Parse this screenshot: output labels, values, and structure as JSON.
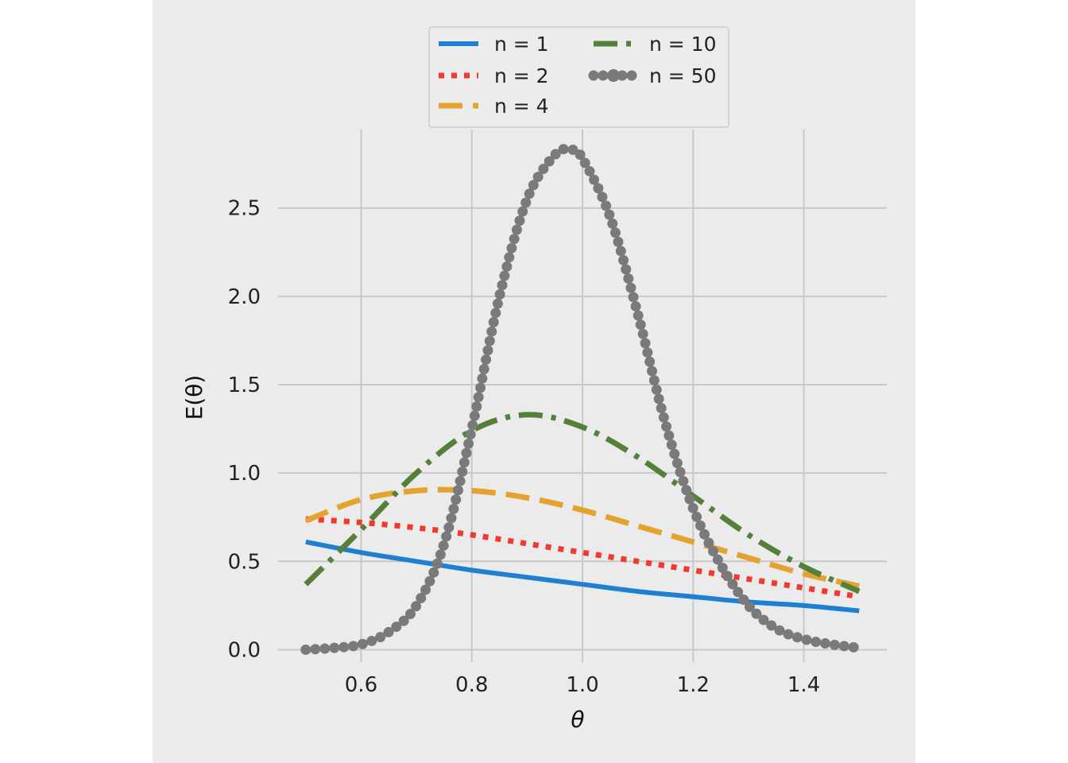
{
  "chart_data": {
    "type": "line",
    "xlabel": "θ",
    "ylabel": "E(θ)",
    "xlim": [
      0.45,
      1.55
    ],
    "ylim": [
      -0.07,
      2.98
    ],
    "xticks": [
      0.6,
      0.8,
      1.0,
      1.2,
      1.4
    ],
    "xtick_labels": [
      "0.6",
      "0.8",
      "1.0",
      "1.2",
      "1.4"
    ],
    "yticks": [
      0.0,
      0.5,
      1.0,
      1.5,
      2.0,
      2.5
    ],
    "ytick_labels": [
      "0.0",
      "0.5",
      "1.0",
      "1.5",
      "2.0",
      "2.5"
    ],
    "grid": true,
    "legend_position": "top",
    "series": [
      {
        "name": "n = 1",
        "color": "#1f7fd1",
        "style": "solid",
        "x": [
          0.5,
          0.6,
          0.7,
          0.8,
          0.9,
          1.0,
          1.1,
          1.2,
          1.3,
          1.4,
          1.5
        ],
        "y": [
          0.61,
          0.55,
          0.5,
          0.45,
          0.41,
          0.37,
          0.33,
          0.3,
          0.27,
          0.25,
          0.22
        ]
      },
      {
        "name": "n = 2",
        "color": "#f03a2e",
        "style": "dotted",
        "x": [
          0.5,
          0.6,
          0.7,
          0.8,
          0.9,
          1.0,
          1.1,
          1.2,
          1.3,
          1.4,
          1.5
        ],
        "y": [
          0.74,
          0.72,
          0.69,
          0.65,
          0.6,
          0.55,
          0.5,
          0.45,
          0.4,
          0.35,
          0.3
        ]
      },
      {
        "name": "n = 4",
        "color": "#e3a32e",
        "style": "dashed",
        "x": [
          0.5,
          0.6,
          0.7,
          0.8,
          0.9,
          1.0,
          1.1,
          1.2,
          1.3,
          1.4,
          1.5
        ],
        "y": [
          0.73,
          0.85,
          0.9,
          0.9,
          0.86,
          0.79,
          0.7,
          0.61,
          0.52,
          0.43,
          0.36
        ]
      },
      {
        "name": "n = 10",
        "color": "#55803a",
        "style": "dashdot",
        "x": [
          0.5,
          0.6,
          0.7,
          0.8,
          0.9,
          1.0,
          1.1,
          1.2,
          1.3,
          1.4,
          1.5
        ],
        "y": [
          0.37,
          0.68,
          1.0,
          1.24,
          1.33,
          1.26,
          1.09,
          0.87,
          0.65,
          0.47,
          0.33
        ]
      },
      {
        "name": "n = 50",
        "color": "#7a7a7a",
        "style": "dot-marker",
        "x": [
          0.5,
          0.55,
          0.6,
          0.65,
          0.7,
          0.75,
          0.8,
          0.85,
          0.9,
          0.95,
          0.98,
          1.0,
          1.05,
          1.1,
          1.15,
          1.2,
          1.25,
          1.3,
          1.35,
          1.4,
          1.45,
          1.5
        ],
        "y": [
          0.0,
          0.01,
          0.03,
          0.1,
          0.25,
          0.6,
          1.25,
          2.0,
          2.55,
          2.8,
          2.83,
          2.78,
          2.45,
          1.9,
          1.28,
          0.8,
          0.48,
          0.25,
          0.12,
          0.06,
          0.03,
          0.01
        ]
      }
    ]
  }
}
